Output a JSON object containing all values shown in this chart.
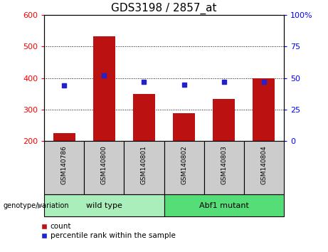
{
  "title": "GDS3198 / 2857_at",
  "samples": [
    "GSM140786",
    "GSM140800",
    "GSM140801",
    "GSM140802",
    "GSM140803",
    "GSM140804"
  ],
  "counts": [
    225,
    533,
    350,
    288,
    333,
    400
  ],
  "percentiles": [
    44,
    52,
    47,
    45,
    47,
    47
  ],
  "baseline": 200,
  "ylim_left": [
    200,
    600
  ],
  "ylim_right": [
    0,
    100
  ],
  "yticks_left": [
    200,
    300,
    400,
    500,
    600
  ],
  "yticks_right": [
    0,
    25,
    50,
    75,
    100
  ],
  "bar_color": "#bb1111",
  "dot_color": "#2222cc",
  "groups": [
    {
      "label": "wild type",
      "indices": [
        0,
        1,
        2
      ],
      "color": "#aaeebb"
    },
    {
      "label": "Abf1 mutant",
      "indices": [
        3,
        4,
        5
      ],
      "color": "#55dd77"
    }
  ],
  "sample_box_color": "#cccccc",
  "genotype_label": "genotype/variation",
  "legend_count_label": "count",
  "legend_percentile_label": "percentile rank within the sample",
  "title_fontsize": 11,
  "tick_fontsize": 8,
  "label_fontsize": 8
}
